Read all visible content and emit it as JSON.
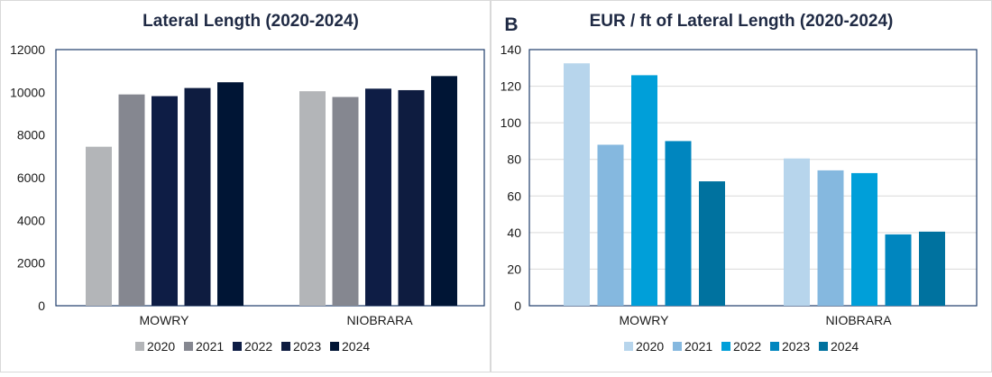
{
  "chart_data": [
    {
      "type": "bar",
      "panel_label": "",
      "title": "Lateral Length (2020-2024)",
      "categories": [
        "MOWRY",
        "NIOBRARA"
      ],
      "ylim": [
        0,
        12000
      ],
      "yticks": [
        0,
        2000,
        4000,
        6000,
        8000,
        10000,
        12000
      ],
      "grid": false,
      "legend": "bottom",
      "series": [
        {
          "name": "2020",
          "color": "#b3b5b8",
          "values": [
            7450,
            10050
          ]
        },
        {
          "name": "2021",
          "color": "#858790",
          "values": [
            9900,
            9780
          ]
        },
        {
          "name": "2022",
          "color": "#0e1d45",
          "values": [
            9820,
            10170
          ]
        },
        {
          "name": "2023",
          "color": "#0e1c40",
          "values": [
            10200,
            10100
          ]
        },
        {
          "name": "2024",
          "color": "#001535",
          "values": [
            10470,
            10760
          ]
        }
      ]
    },
    {
      "type": "bar",
      "panel_label": "B",
      "title": "EUR / ft of Lateral Length (2020-2024)",
      "categories": [
        "MOWRY",
        "NIOBRARA"
      ],
      "ylim": [
        0,
        140
      ],
      "yticks": [
        0,
        20,
        40,
        60,
        80,
        100,
        120,
        140
      ],
      "grid": true,
      "legend": "bottom",
      "series": [
        {
          "name": "2020",
          "color": "#b7d5ec",
          "values": [
            132.5,
            80.5
          ]
        },
        {
          "name": "2021",
          "color": "#85b8df",
          "values": [
            88.0,
            74.0
          ]
        },
        {
          "name": "2022",
          "color": "#009fd9",
          "values": [
            126.0,
            72.5
          ]
        },
        {
          "name": "2023",
          "color": "#0086bf",
          "values": [
            90.0,
            39.0
          ]
        },
        {
          "name": "2024",
          "color": "#00729f",
          "values": [
            68.0,
            40.5
          ]
        }
      ]
    }
  ]
}
